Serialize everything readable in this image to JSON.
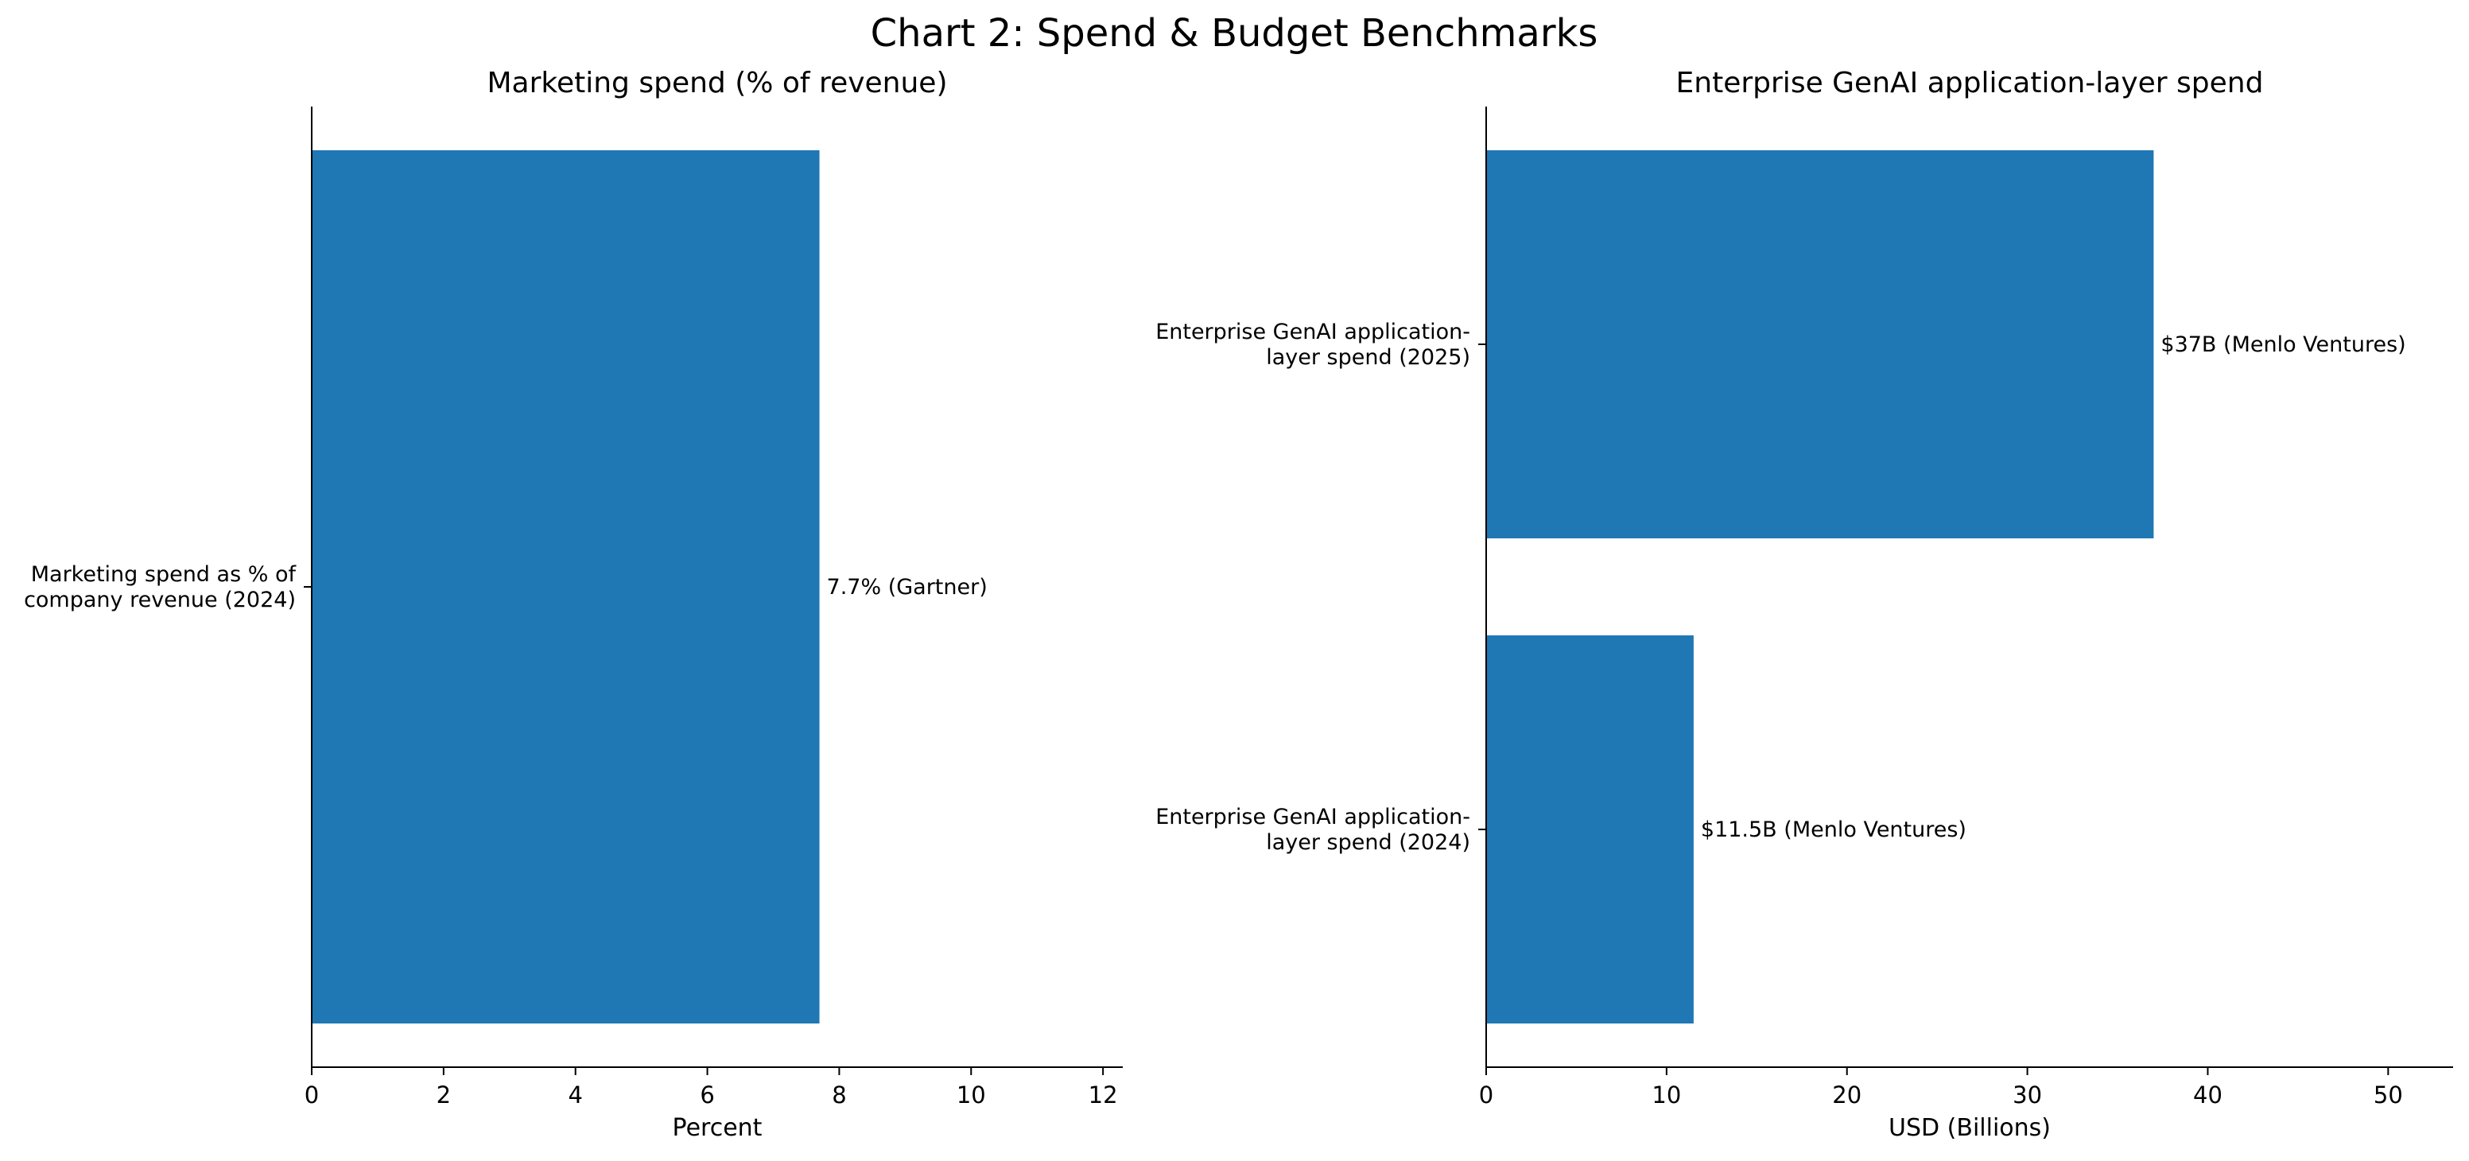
{
  "page_title": "Chart 2: Spend & Budget Benchmarks",
  "colors": {
    "bar": "#1f77b4",
    "axis": "#000000",
    "background": "#ffffff"
  },
  "chart_data": [
    {
      "type": "bar",
      "orientation": "horizontal",
      "title": "Marketing spend (% of revenue)",
      "xlabel": "Percent",
      "ylabel": "",
      "xlim": [
        0,
        12.3
      ],
      "xticks": [
        0,
        2,
        4,
        6,
        8,
        10,
        12
      ],
      "categories": [
        "Marketing spend as % of company revenue (2024)"
      ],
      "category_lines": [
        [
          "Marketing spend as % of",
          "company revenue (2024)"
        ]
      ],
      "values": [
        7.7
      ],
      "data_labels": [
        "7.7% (Gartner)"
      ],
      "grid": false,
      "legend": "none"
    },
    {
      "type": "bar",
      "orientation": "horizontal",
      "title": "Enterprise GenAI application-layer spend",
      "xlabel": "USD (Billions)",
      "ylabel": "",
      "xlim": [
        0,
        53.6
      ],
      "xticks": [
        0,
        10,
        20,
        30,
        40,
        50
      ],
      "categories": [
        "Enterprise GenAI application-layer spend (2025)",
        "Enterprise GenAI application-layer spend (2024)"
      ],
      "category_lines": [
        [
          "Enterprise GenAI application-",
          "layer spend (2025)"
        ],
        [
          "Enterprise GenAI application-",
          "layer spend (2024)"
        ]
      ],
      "values": [
        37,
        11.5
      ],
      "data_labels": [
        "$37B (Menlo Ventures)",
        "$11.5B (Menlo Ventures)"
      ],
      "grid": false,
      "legend": "none"
    }
  ]
}
